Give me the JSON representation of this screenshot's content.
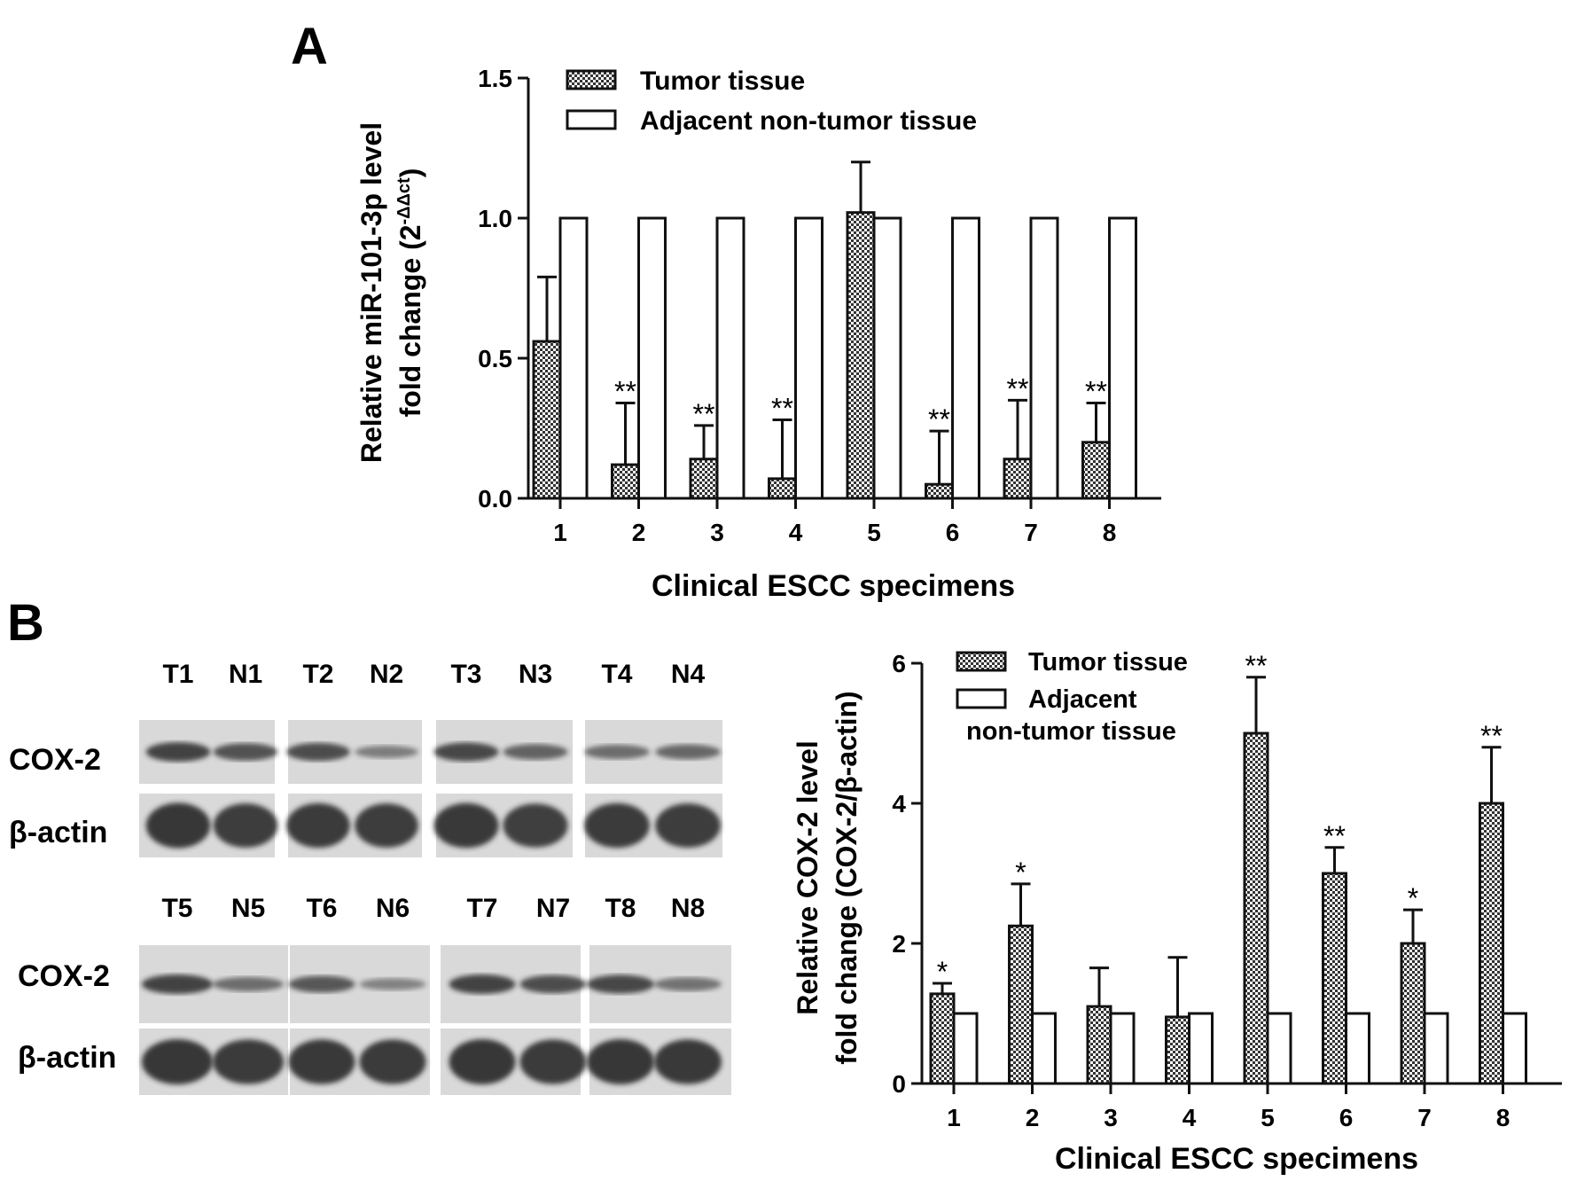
{
  "panel_labels": {
    "a": "A",
    "b": "B"
  },
  "colors": {
    "axis": "#111111",
    "tumor_pattern": "checkered",
    "adjacent_fill": "#ffffff",
    "blot_bg": "#d9d9d9",
    "blot_band": "#2a2a2a"
  },
  "blots": {
    "top": {
      "lane_labels": [
        "T1",
        "N1",
        "T2",
        "N2",
        "T3",
        "N3",
        "T4",
        "N4"
      ],
      "row_labels": [
        "COX-2",
        "β-actin"
      ],
      "band_intensity": {
        "cox2": [
          0.85,
          0.7,
          0.75,
          0.3,
          0.8,
          0.55,
          0.45,
          0.5
        ],
        "actin": [
          0.95,
          0.9,
          0.92,
          0.9,
          0.93,
          0.88,
          0.92,
          0.9
        ]
      }
    },
    "bottom": {
      "lane_labels": [
        "T5",
        "N5",
        "T6",
        "N6",
        "T7",
        "N7",
        "T8",
        "N8"
      ],
      "row_labels": [
        "COX-2",
        "β-actin"
      ],
      "band_intensity": {
        "cox2": [
          0.85,
          0.45,
          0.65,
          0.25,
          0.85,
          0.75,
          0.8,
          0.4
        ],
        "actin": [
          0.95,
          0.92,
          0.93,
          0.92,
          0.95,
          0.92,
          0.95,
          0.93
        ]
      }
    }
  },
  "chart_data": [
    {
      "type": "bar",
      "title": "",
      "xlabel": "Clinical ESCC specimens",
      "ylabel_line1": "Relative miR-101-3p level",
      "ylabel_line2_main": "fold change (2",
      "ylabel_line2_sup": "-ΔΔct",
      "ylabel_line2_end": ")",
      "categories": [
        "1",
        "2",
        "3",
        "4",
        "5",
        "6",
        "7",
        "8"
      ],
      "ylim": [
        0,
        1.5
      ],
      "yticks": [
        "0.0",
        "0.5",
        "1.0",
        "1.5"
      ],
      "legend_position": "top",
      "series": [
        {
          "name": "Tumor tissue",
          "values": [
            0.56,
            0.12,
            0.14,
            0.07,
            1.02,
            0.05,
            0.14,
            0.2
          ],
          "errors": [
            0.23,
            0.22,
            0.12,
            0.21,
            0.18,
            0.19,
            0.21,
            0.14
          ],
          "significance": [
            "",
            "**",
            "**",
            "**",
            "",
            "**",
            "**",
            "**"
          ]
        },
        {
          "name": "Adjacent non-tumor tissue",
          "values": [
            1,
            1,
            1,
            1,
            1,
            1,
            1,
            1
          ]
        }
      ]
    },
    {
      "type": "bar",
      "title": "",
      "xlabel": "Clinical ESCC specimens",
      "ylabel_line1": "Relative COX-2 level",
      "ylabel_line2": "fold change (COX-2/β-actin)",
      "categories": [
        "1",
        "2",
        "3",
        "4",
        "5",
        "6",
        "7",
        "8"
      ],
      "ylim": [
        0,
        6
      ],
      "yticks": [
        "0",
        "2",
        "4",
        "6"
      ],
      "legend_position": "top-left",
      "legend_lines": [
        "Tumor tissue",
        "Adjacent",
        "non-tumor tissue"
      ],
      "series": [
        {
          "name": "Tumor tissue",
          "values": [
            1.28,
            2.25,
            1.1,
            0.95,
            5.0,
            3.0,
            2.0,
            4.0
          ],
          "errors": [
            0.15,
            0.6,
            0.55,
            0.85,
            0.8,
            0.37,
            0.48,
            0.8
          ],
          "significance": [
            "*",
            "*",
            "",
            "",
            "**",
            "**",
            "*",
            "**"
          ]
        },
        {
          "name": "Adjacent non-tumor tissue",
          "values": [
            1,
            1,
            1,
            1,
            1,
            1,
            1,
            1
          ]
        }
      ]
    }
  ]
}
